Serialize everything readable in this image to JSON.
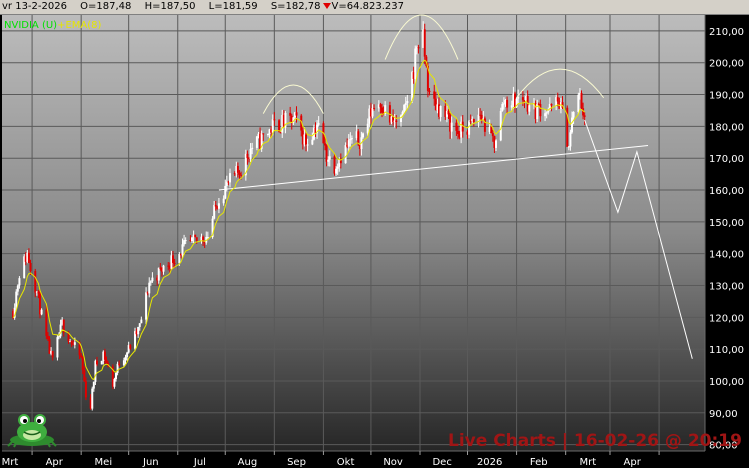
{
  "info_bar": {
    "date": "vr 13-2-2026",
    "open": "O=187,48",
    "high": "H=187,50",
    "low": "L=181,59",
    "settle": "S=182,78",
    "volume": "V=64.823.237"
  },
  "legend": {
    "ticker": "NVIDIA (U)",
    "plus": "+",
    "ema": "EMA(8)"
  },
  "watermark": "Live Charts | 16-02-26 @ 20:19",
  "colors": {
    "background": "#000000",
    "plot_top": "#b9b9b9",
    "plot_bottom": "#262626",
    "up_candle": "#ffffff",
    "down_candle": "#e00000",
    "ema": "#e6e600",
    "ticker_text": "#00e000",
    "annotation": "#fafad2",
    "watermark": "#a01515"
  },
  "chart_data": {
    "type": "candlestick",
    "title": "",
    "series_names": [
      "NVIDIA (U)",
      "EMA(8)"
    ],
    "y_axis": {
      "side": "right",
      "ylim": [
        78,
        215
      ],
      "ticks": [
        80,
        90,
        100,
        110,
        120,
        130,
        140,
        150,
        160,
        170,
        180,
        190,
        200,
        210
      ],
      "tick_labels": [
        "80,00",
        "90,00",
        "100,00",
        "110,00",
        "120,00",
        "130,00",
        "140,00",
        "150,00",
        "160,00",
        "170,00",
        "180,00",
        "190,00",
        "200,00",
        "210,00"
      ]
    },
    "x_axis": {
      "labels": [
        "Mrt",
        "Apr",
        "Mei",
        "Jun",
        "Jul",
        "Aug",
        "Sep",
        "Okt",
        "Nov",
        "Dec",
        "2026",
        "Feb",
        "Mrt",
        "Apr"
      ]
    },
    "grid": true,
    "anchors": [
      {
        "date": "2025-02-17",
        "close": 122
      },
      {
        "date": "2025-02-21",
        "close": 134
      },
      {
        "date": "2025-02-26",
        "close": 140
      },
      {
        "date": "2025-03-04",
        "close": 128
      },
      {
        "date": "2025-03-10",
        "close": 113
      },
      {
        "date": "2025-03-14",
        "close": 106
      },
      {
        "date": "2025-03-20",
        "close": 118
      },
      {
        "date": "2025-03-26",
        "close": 112
      },
      {
        "date": "2025-04-01",
        "close": 107
      },
      {
        "date": "2025-04-04",
        "close": 96
      },
      {
        "date": "2025-04-07",
        "close": 92
      },
      {
        "date": "2025-04-10",
        "close": 105
      },
      {
        "date": "2025-04-15",
        "close": 109
      },
      {
        "date": "2025-04-21",
        "close": 99
      },
      {
        "date": "2025-04-25",
        "close": 106
      },
      {
        "date": "2025-05-01",
        "close": 110
      },
      {
        "date": "2025-05-08",
        "close": 117
      },
      {
        "date": "2025-05-14",
        "close": 131
      },
      {
        "date": "2025-05-20",
        "close": 134
      },
      {
        "date": "2025-05-28",
        "close": 138
      },
      {
        "date": "2025-06-05",
        "close": 142
      },
      {
        "date": "2025-06-13",
        "close": 144
      },
      {
        "date": "2025-06-20",
        "close": 146
      },
      {
        "date": "2025-06-27",
        "close": 158
      },
      {
        "date": "2025-07-03",
        "close": 162
      },
      {
        "date": "2025-07-10",
        "close": 166
      },
      {
        "date": "2025-07-17",
        "close": 173
      },
      {
        "date": "2025-07-24",
        "close": 176
      },
      {
        "date": "2025-07-31",
        "close": 180
      },
      {
        "date": "2025-08-07",
        "close": 181
      },
      {
        "date": "2025-08-14",
        "close": 182
      },
      {
        "date": "2025-08-21",
        "close": 175
      },
      {
        "date": "2025-08-28",
        "close": 181
      },
      {
        "date": "2025-09-03",
        "close": 171
      },
      {
        "date": "2025-09-08",
        "close": 168
      },
      {
        "date": "2025-09-12",
        "close": 171
      },
      {
        "date": "2025-09-18",
        "close": 175
      },
      {
        "date": "2025-09-25",
        "close": 176
      },
      {
        "date": "2025-10-02",
        "close": 186
      },
      {
        "date": "2025-10-07",
        "close": 188
      },
      {
        "date": "2025-10-14",
        "close": 181
      },
      {
        "date": "2025-10-21",
        "close": 182
      },
      {
        "date": "2025-10-28",
        "close": 198
      },
      {
        "date": "2025-10-30",
        "close": 206
      },
      {
        "date": "2025-11-03",
        "close": 207
      },
      {
        "date": "2025-11-07",
        "close": 189
      },
      {
        "date": "2025-11-13",
        "close": 186
      },
      {
        "date": "2025-11-20",
        "close": 181
      },
      {
        "date": "2025-11-25",
        "close": 178
      },
      {
        "date": "2025-12-03",
        "close": 180
      },
      {
        "date": "2025-12-09",
        "close": 184
      },
      {
        "date": "2025-12-15",
        "close": 177
      },
      {
        "date": "2025-12-18",
        "close": 175
      },
      {
        "date": "2025-12-24",
        "close": 188
      },
      {
        "date": "2025-12-30",
        "close": 188
      },
      {
        "date": "2026-01-06",
        "close": 189
      },
      {
        "date": "2026-01-12",
        "close": 185
      },
      {
        "date": "2026-01-16",
        "close": 186
      },
      {
        "date": "2026-01-22",
        "close": 185
      },
      {
        "date": "2026-01-28",
        "close": 188
      },
      {
        "date": "2026-02-03",
        "close": 174
      },
      {
        "date": "2026-02-06",
        "close": 185
      },
      {
        "date": "2026-02-10",
        "close": 189
      },
      {
        "date": "2026-02-13",
        "close": 183
      }
    ],
    "annotations": {
      "neckline": [
        {
          "date": "2025-06-27",
          "value": 160
        },
        {
          "date": "2026-03-25",
          "value": 174
        }
      ],
      "projection": [
        {
          "date": "2026-02-13",
          "value": 182
        },
        {
          "date": "2026-03-06",
          "value": 153
        },
        {
          "date": "2026-03-18",
          "value": 172
        },
        {
          "date": "2026-04-22",
          "value": 107
        }
      ],
      "shoulder_left": {
        "from": "2025-07-25",
        "to": "2025-09-01",
        "base": 184,
        "peak": 193
      },
      "head": {
        "from": "2025-10-10",
        "to": "2025-11-25",
        "base": 201,
        "peak": 215
      },
      "shoulder_right": {
        "from": "2026-01-01",
        "to": "2026-02-25",
        "base": 189,
        "peak": 198
      }
    }
  }
}
